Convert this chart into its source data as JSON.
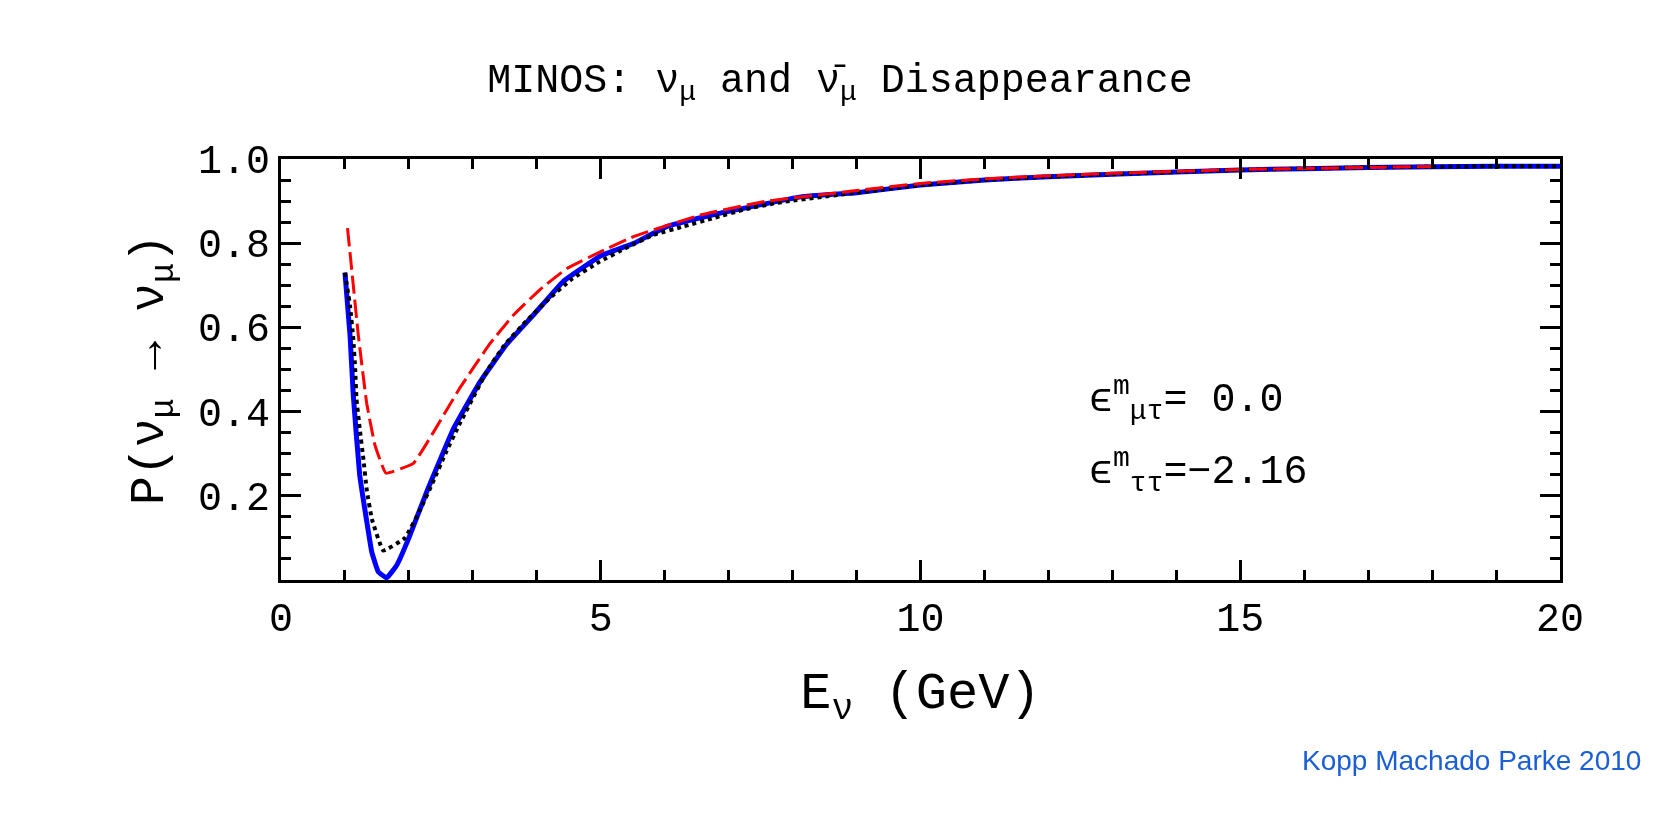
{
  "chart_data": {
    "type": "line",
    "title": "MINOS: ν$_{μ}$ and ν̄$_{μ}$ Disappearance",
    "xlabel": "E$_{ν}$ (GeV)",
    "ylabel": "P(ν$_{μ}$ → ν$_{μ}$)",
    "annotations": [
      "ϵ$^{m}$$_{μτ}$= 0.0",
      "ϵ$^{m}$$_{ττ}$=−2.16",
      "Kopp Machado Parke 2010"
    ],
    "xlim": [
      0,
      20
    ],
    "xticks": [
      0,
      5,
      10,
      15,
      20
    ],
    "ylim": [
      0,
      1.0
    ],
    "yticks": [
      {
        "value": 0.2,
        "label": "0.2"
      },
      {
        "value": 0.4,
        "label": "0.4"
      },
      {
        "value": 0.6,
        "label": "0.6"
      },
      {
        "value": 0.8,
        "label": "0.8"
      },
      {
        "value": 1.0,
        "label": "1.0"
      }
    ],
    "grid": false,
    "marker": "none",
    "series": [
      {
        "color": "#ff0000",
        "line_style": "dashed",
        "x": [
          1.04,
          1.1,
          1.21,
          1.34,
          1.47,
          1.64,
          2.07,
          2.38,
          2.8,
          3.27,
          3.64,
          4.05,
          4.47,
          5.0,
          5.52,
          6.56,
          7.6,
          9,
          10,
          11,
          12,
          13,
          15,
          17,
          18
        ],
        "values": [
          0.836,
          0.746,
          0.58,
          0.42,
          0.32,
          0.254,
          0.277,
          0.35,
          0.457,
          0.562,
          0.63,
          0.69,
          0.74,
          0.78,
          0.816,
          0.867,
          0.9,
          0.925,
          0.942,
          0.953,
          0.96,
          0.966,
          0.975,
          0.98,
          0.982
        ]
      },
      {
        "color": "#000000",
        "line_style": "dotted",
        "x": [
          1.0,
          1.08,
          1.13,
          1.16,
          1.18,
          1.23,
          1.29,
          1.34,
          1.42,
          1.6,
          1.94,
          2.18,
          2.38,
          2.57,
          2.78,
          3.22,
          3.5,
          3.85,
          4.19,
          4.55,
          4.97,
          5.41,
          5.83,
          6.3,
          6.77,
          7.24,
          7.76,
          9,
          10,
          11,
          12,
          13,
          15,
          17,
          19,
          20
        ],
        "values": [
          0.73,
          0.65,
          0.574,
          0.5,
          0.43,
          0.36,
          0.285,
          0.215,
          0.145,
          0.07,
          0.1,
          0.168,
          0.234,
          0.3,
          0.367,
          0.496,
          0.559,
          0.617,
          0.668,
          0.715,
          0.755,
          0.79,
          0.82,
          0.84,
          0.86,
          0.88,
          0.896,
          0.92,
          0.938,
          0.95,
          0.958,
          0.964,
          0.974,
          0.98,
          0.983,
          0.983
        ]
      },
      {
        "color": "#0000ff",
        "line_style": "solid",
        "x": [
          1.0,
          1.08,
          1.13,
          1.23,
          1.34,
          1.42,
          1.52,
          1.65,
          1.81,
          2.0,
          2.28,
          2.7,
          3.11,
          3.53,
          3.95,
          4.42,
          5.0,
          5.52,
          6.04,
          6.82,
          8.13,
          9,
          10,
          11,
          12,
          13,
          15,
          17,
          19,
          20
        ],
        "values": [
          0.73,
          0.58,
          0.44,
          0.25,
          0.14,
          0.066,
          0.02,
          0.005,
          0.035,
          0.1,
          0.21,
          0.36,
          0.47,
          0.56,
          0.63,
          0.71,
          0.77,
          0.8,
          0.84,
          0.87,
          0.91,
          0.92,
          0.938,
          0.95,
          0.958,
          0.964,
          0.974,
          0.98,
          0.983,
          0.983
        ]
      }
    ]
  }
}
